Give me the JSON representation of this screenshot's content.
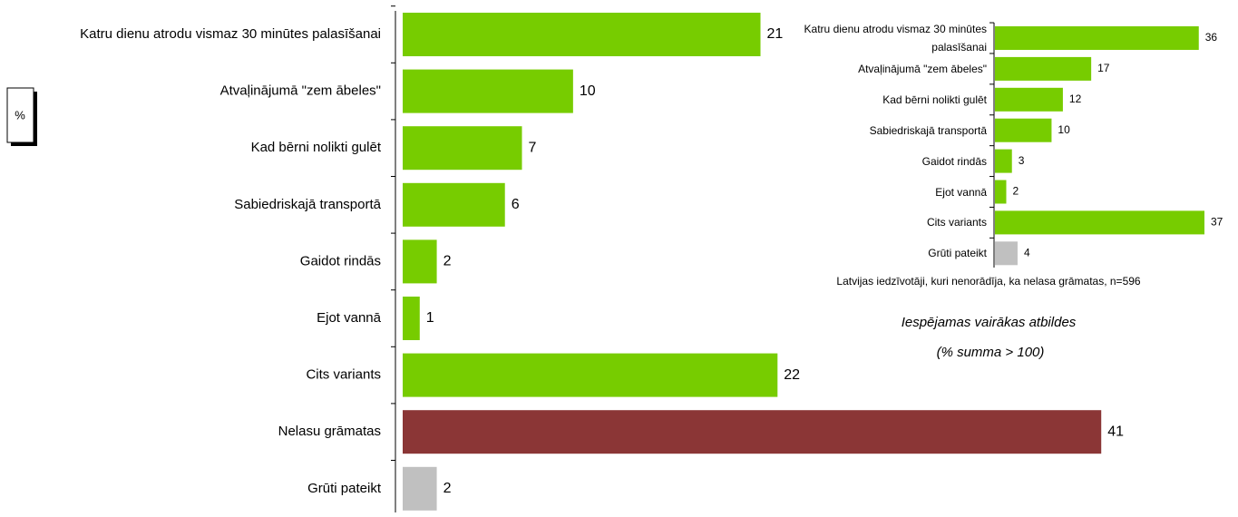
{
  "chart_data": [
    {
      "type": "barh",
      "ylabel": "%",
      "categories": [
        "Katru dienu atrodu vismaz 30 minūtes palasīšanai",
        "Atvaļinājumā \"zem ābeles\"",
        "Kad bērni nolikti gulēt",
        "Sabiedriskajā transportā",
        "Gaidot rindās",
        "Ejot vannā",
        "Cits variants",
        "Nelasu grāmatas",
        "Grūti pateikt"
      ],
      "values": [
        21,
        10,
        7,
        6,
        2,
        1,
        22,
        41,
        2
      ],
      "colors": [
        "#77cc00",
        "#77cc00",
        "#77cc00",
        "#77cc00",
        "#77cc00",
        "#77cc00",
        "#77cc00",
        "#8b3636",
        "#c0c0c0"
      ],
      "xlim": [
        0,
        42
      ]
    },
    {
      "type": "barh",
      "categories": [
        "Katru dienu atrodu vismaz 30 minūtes palasīšanai",
        "Atvaļinājumā \"zem ābeles\"",
        "Kad bērni nolikti gulēt",
        "Sabiedriskajā transportā",
        "Gaidot rindās",
        "Ejot vannā",
        "Cits variants",
        "Grūti pateikt"
      ],
      "values": [
        36,
        17,
        12,
        10,
        3,
        2,
        37,
        4
      ],
      "colors": [
        "#77cc00",
        "#77cc00",
        "#77cc00",
        "#77cc00",
        "#77cc00",
        "#77cc00",
        "#77cc00",
        "#c0c0c0"
      ],
      "xlim": [
        0,
        37
      ],
      "note": "Latvijas iedzīvotāji, kuri nenorādīja, ka nelasa grāmatas, n=596",
      "annotations": [
        "Iespējamas vairākas atbildes",
        "(% summa > 100)"
      ]
    }
  ]
}
